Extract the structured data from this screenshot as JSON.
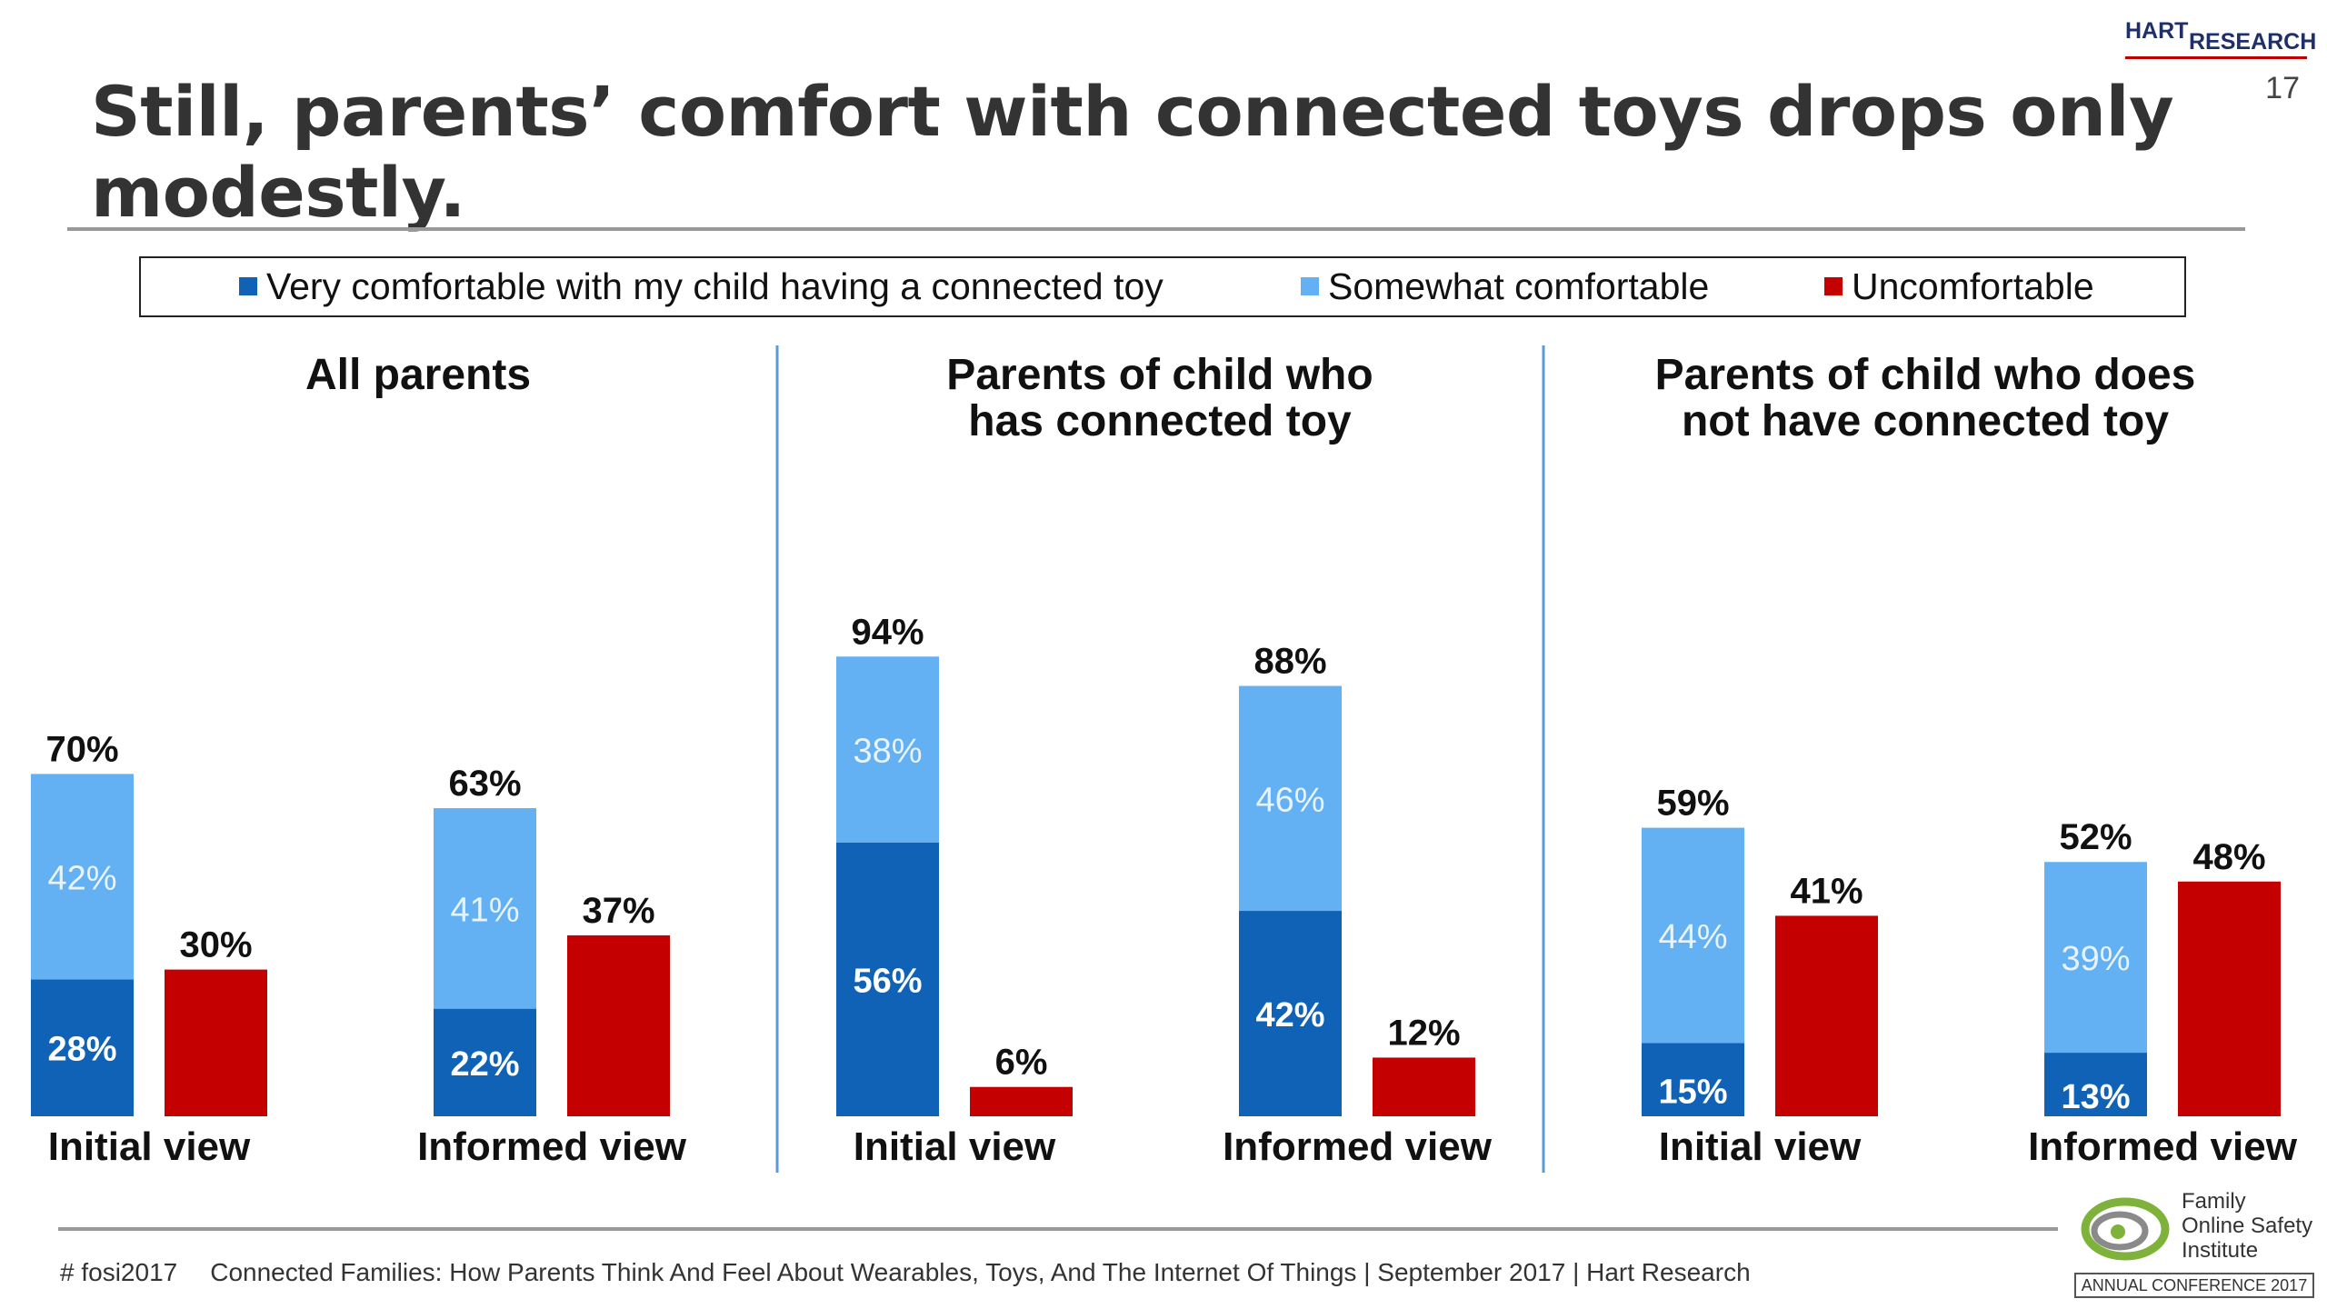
{
  "header": {
    "title": "Still, parents’ comfort with connected toys drops only modestly.",
    "page_number": "17",
    "brand": {
      "hart": "HART",
      "research": "RESEARCH"
    }
  },
  "colors": {
    "very": "#0F62B5",
    "somewhat": "#63B1F2",
    "uncomfortable": "#C40000",
    "divider": "#5B9BD5"
  },
  "footer": {
    "tag": "# fosi2017",
    "text": "Connected Families: How Parents Think And Feel About Wearables, Toys, And The Internet Of Things | September 2017 | Hart Research",
    "logo": {
      "line1": "Family",
      "line2": "Online Safety",
      "line3": "Institute",
      "conference": "ANNUAL CONFERENCE 2017"
    }
  },
  "chart_data": {
    "type": "bar",
    "stacked": true,
    "ylim": [
      0,
      100
    ],
    "grid": false,
    "legend": {
      "position": "top",
      "entries": [
        {
          "name": "Very comfortable with my child having a connected toy",
          "color": "#0F62B5"
        },
        {
          "name": "Somewhat comfortable",
          "color": "#63B1F2"
        },
        {
          "name": "Uncomfortable",
          "color": "#C40000"
        }
      ]
    },
    "panels": [
      {
        "title_lines": [
          "All parents"
        ],
        "groups": [
          {
            "label": "Initial view",
            "very": 28,
            "somewhat": 42,
            "comfortable_total": 70,
            "uncomfortable": 30,
            "labels": {
              "very": "28%",
              "somewhat": "42%",
              "total": "70%",
              "uncomfortable": "30%"
            }
          },
          {
            "label": "Informed view",
            "very": 22,
            "somewhat": 41,
            "comfortable_total": 63,
            "uncomfortable": 37,
            "labels": {
              "very": "22%",
              "somewhat": "41%",
              "total": "63%",
              "uncomfortable": "37%"
            }
          }
        ]
      },
      {
        "title_lines": [
          "Parents of child who",
          "has connected toy"
        ],
        "groups": [
          {
            "label": "Initial view",
            "very": 56,
            "somewhat": 38,
            "comfortable_total": 94,
            "uncomfortable": 6,
            "labels": {
              "very": "56%",
              "somewhat": "38%",
              "total": "94%",
              "uncomfortable": "6%"
            }
          },
          {
            "label": "Informed view",
            "very": 42,
            "somewhat": 46,
            "comfortable_total": 88,
            "uncomfortable": 12,
            "labels": {
              "very": "42%",
              "somewhat": "46%",
              "total": "88%",
              "uncomfortable": "12%"
            }
          }
        ]
      },
      {
        "title_lines": [
          "Parents of child who does",
          "not have connected toy"
        ],
        "groups": [
          {
            "label": "Initial view",
            "very": 15,
            "somewhat": 44,
            "comfortable_total": 59,
            "uncomfortable": 41,
            "labels": {
              "very": "15%",
              "somewhat": "44%",
              "total": "59%",
              "uncomfortable": "41%"
            }
          },
          {
            "label": "Informed view",
            "very": 13,
            "somewhat": 39,
            "comfortable_total": 52,
            "uncomfortable": 48,
            "labels": {
              "very": "13%",
              "somewhat": "39%",
              "total": "52%",
              "uncomfortable": "48%"
            }
          }
        ]
      }
    ]
  }
}
